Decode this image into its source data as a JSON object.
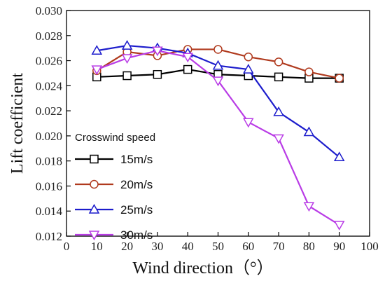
{
  "chart_data": {
    "type": "line",
    "xlabel": "Wind direction（°）",
    "ylabel": "Lift coefficient",
    "xlim": [
      0,
      100
    ],
    "ylim": [
      0.012,
      0.03
    ],
    "xticks": [
      "0",
      "10",
      "20",
      "30",
      "40",
      "50",
      "60",
      "70",
      "80",
      "90",
      "100"
    ],
    "yticks": [
      "0.012",
      "0.014",
      "0.016",
      "0.018",
      "0.020",
      "0.022",
      "0.024",
      "0.026",
      "0.028",
      "0.030"
    ],
    "grid": false,
    "legend_title": "Crosswind speed",
    "legend_position": "bottom-left",
    "x": [
      10,
      20,
      30,
      40,
      50,
      60,
      70,
      80,
      90
    ],
    "series": [
      {
        "name": "15m/s",
        "color": "#000000",
        "marker": "square",
        "values": [
          0.0247,
          0.0248,
          0.0249,
          0.0253,
          0.0249,
          0.0248,
          0.0247,
          0.0246,
          0.0246
        ]
      },
      {
        "name": "20m/s",
        "color": "#b03a1e",
        "marker": "circle",
        "values": [
          0.0252,
          0.0267,
          0.0264,
          0.0269,
          0.0269,
          0.0263,
          0.0259,
          0.0251,
          0.0246
        ]
      },
      {
        "name": "25m/s",
        "color": "#1c1ccc",
        "marker": "triangle-up",
        "values": [
          0.0268,
          0.0272,
          0.027,
          0.0266,
          0.0256,
          0.0253,
          0.0219,
          0.0203,
          0.0183
        ]
      },
      {
        "name": "30m/s",
        "color": "#b93ce6",
        "marker": "triangle-down",
        "values": [
          0.0253,
          0.0262,
          0.0268,
          0.0263,
          0.0244,
          0.0211,
          0.0198,
          0.0144,
          0.0129
        ]
      }
    ]
  }
}
